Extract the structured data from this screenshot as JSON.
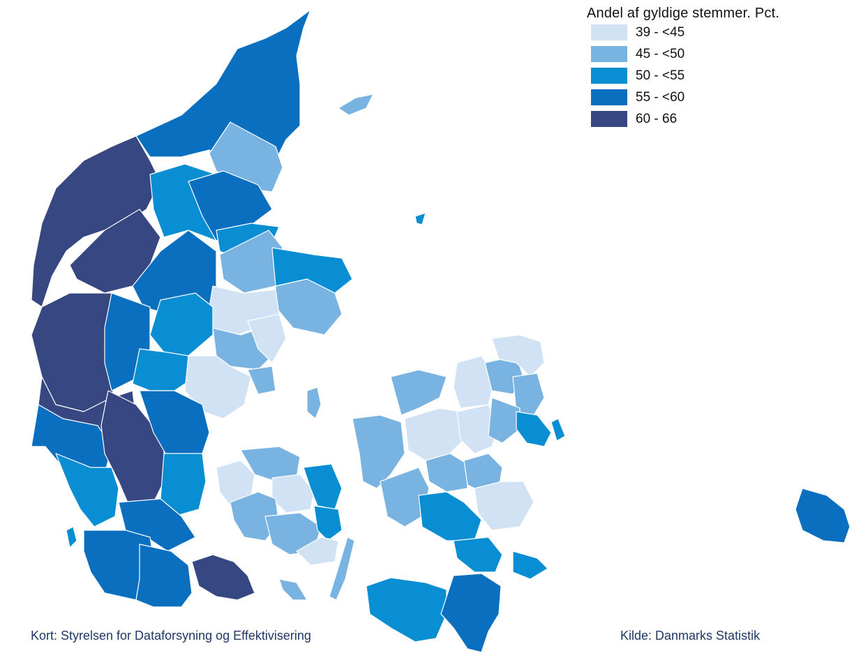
{
  "legend": {
    "title": "Andel af gyldige stemmer. Pct.",
    "items": [
      {
        "label": "39 - <45",
        "color": "#d1e2f5"
      },
      {
        "label": "45 - <50",
        "color": "#79b3e2"
      },
      {
        "label": "50 - <55",
        "color": "#0a8ed3"
      },
      {
        "label": "55 - <60",
        "color": "#0a6fbf"
      },
      {
        "label": "60 - 66",
        "color": "#364781"
      }
    ]
  },
  "credits": {
    "map_source": "Kort: Styrelsen for Dataforsyning og Effektivisering",
    "data_source": "Kilde: Danmarks Statistik"
  }
}
